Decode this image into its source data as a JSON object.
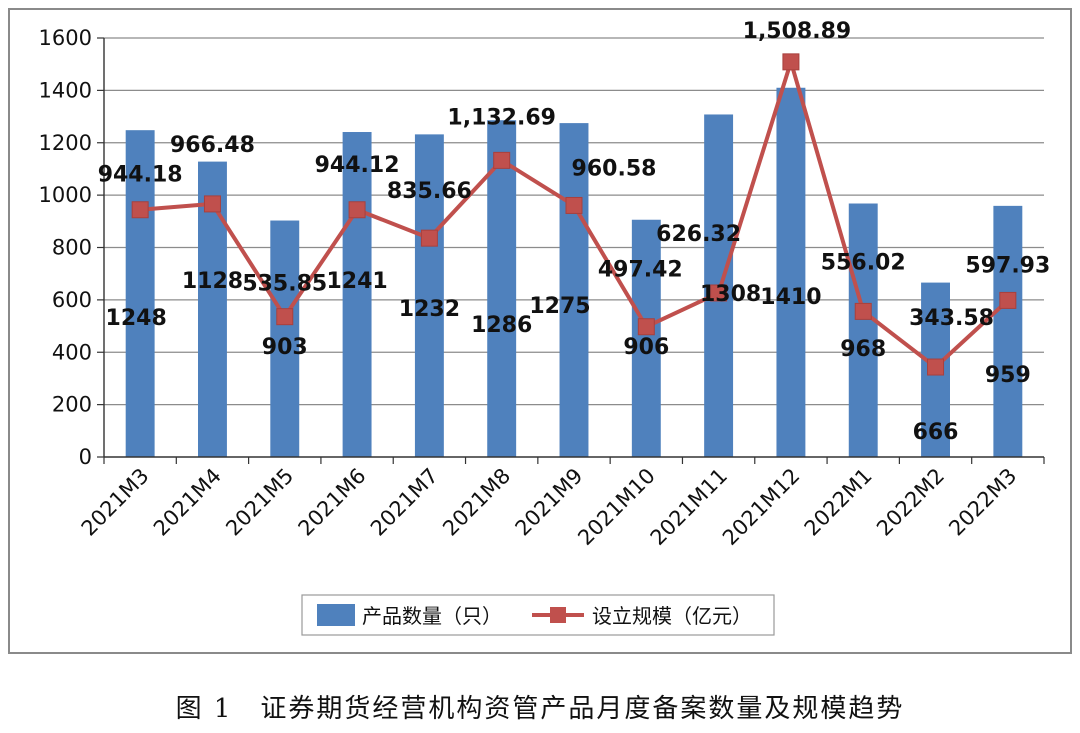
{
  "chart_data": {
    "type": "bar+line",
    "categories": [
      "2021M3",
      "2021M4",
      "2021M5",
      "2021M6",
      "2021M7",
      "2021M8",
      "2021M9",
      "2021M10",
      "2021M11",
      "2021M12",
      "2022M1",
      "2022M2",
      "2022M3"
    ],
    "series": [
      {
        "name": "产品数量（只）",
        "type": "bar",
        "color": "#4F81BD",
        "values": [
          1248,
          1128,
          903,
          1241,
          1232,
          1286,
          1275,
          906,
          1308,
          1410,
          968,
          666,
          959
        ],
        "labels": [
          "1248",
          "1128",
          "903",
          "1241",
          "1232",
          "1286",
          "1275",
          "906",
          "1308",
          "1410",
          "968",
          "666",
          "959"
        ]
      },
      {
        "name": "设立规模（亿元）",
        "type": "line",
        "color": "#C0504D",
        "values": [
          944.18,
          966.48,
          535.85,
          944.12,
          835.66,
          1132.69,
          960.58,
          497.42,
          626.32,
          1508.89,
          556.02,
          343.58,
          597.93
        ],
        "labels": [
          "944.18",
          "966.48",
          "535.85",
          "944.12",
          "835.66",
          "1,132.69",
          "960.58",
          "497.42",
          "626.32",
          "1,508.89",
          "556.02",
          "343.58",
          "597.93"
        ]
      }
    ],
    "ylim": [
      0,
      1600
    ],
    "yticks": [
      "0",
      "200",
      "400",
      "600",
      "800",
      "1000",
      "1200",
      "1400",
      "1600"
    ],
    "grid": true,
    "legend_position": "bottom"
  },
  "caption": "图 1　证券期货经营机构资管产品月度备案数量及规模趋势"
}
